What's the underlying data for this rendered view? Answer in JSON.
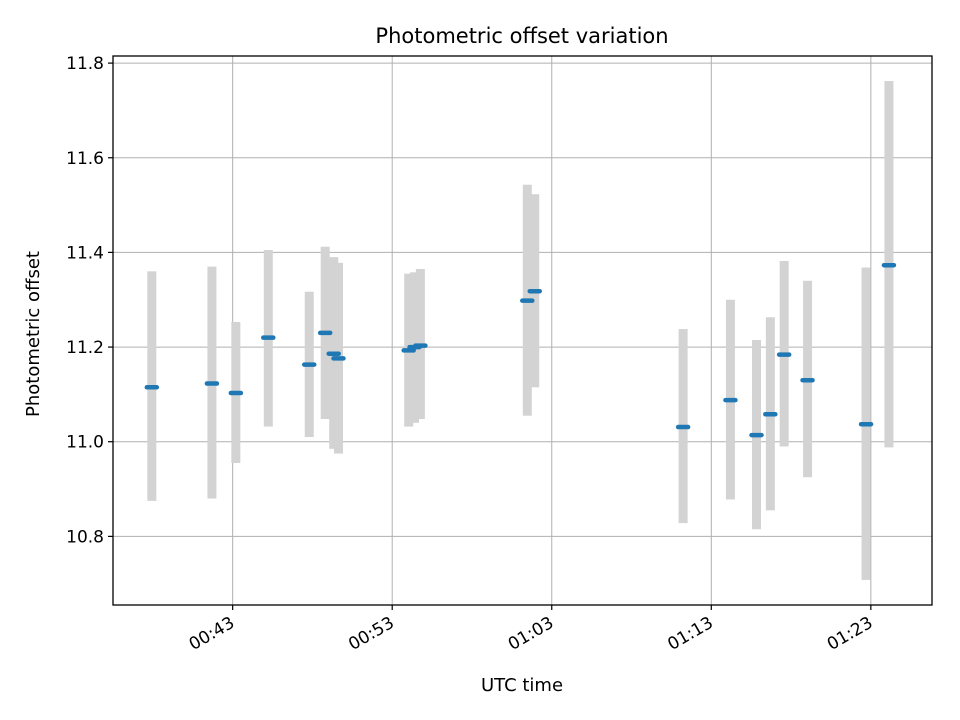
{
  "colors": {
    "background": "#ffffff",
    "axes": "#000000",
    "grid": "#b0b0b0",
    "errorbar": "#d3d3d3",
    "marker": "#1f77b4"
  },
  "chart_data": {
    "type": "scatter",
    "title": "Photometric offset variation",
    "xlabel": "UTC time",
    "ylabel": "Photometric offset",
    "grid": true,
    "xlim": [
      "00:35:30",
      "01:26:50"
    ],
    "ylim": [
      10.655,
      11.815
    ],
    "xticks": [
      "00:43",
      "00:53",
      "01:03",
      "01:13",
      "01:23"
    ],
    "yticks": [
      "10.8",
      "11.0",
      "11.2",
      "11.4",
      "11.6",
      "11.8"
    ],
    "series": [
      {
        "points": [
          {
            "t": "00:37:56",
            "y": 11.115,
            "lo": 10.875,
            "hi": 11.36
          },
          {
            "t": "00:41:42",
            "y": 11.123,
            "lo": 10.88,
            "hi": 11.37
          },
          {
            "t": "00:43:12",
            "y": 11.103,
            "lo": 10.955,
            "hi": 11.253
          },
          {
            "t": "00:45:14",
            "y": 11.22,
            "lo": 11.032,
            "hi": 11.405
          },
          {
            "t": "00:47:48",
            "y": 11.163,
            "lo": 11.01,
            "hi": 11.317
          },
          {
            "t": "00:48:48",
            "y": 11.23,
            "lo": 11.048,
            "hi": 11.412
          },
          {
            "t": "00:49:20",
            "y": 11.186,
            "lo": 10.985,
            "hi": 11.39
          },
          {
            "t": "00:49:38",
            "y": 11.176,
            "lo": 10.975,
            "hi": 11.378
          },
          {
            "t": "00:54:02",
            "y": 11.193,
            "lo": 11.032,
            "hi": 11.355
          },
          {
            "t": "00:54:24",
            "y": 11.2,
            "lo": 11.04,
            "hi": 11.358
          },
          {
            "t": "00:54:46",
            "y": 11.203,
            "lo": 11.048,
            "hi": 11.365
          },
          {
            "t": "01:01:28",
            "y": 11.298,
            "lo": 11.055,
            "hi": 11.543
          },
          {
            "t": "01:01:56",
            "y": 11.318,
            "lo": 11.115,
            "hi": 11.523
          },
          {
            "t": "01:11:14",
            "y": 11.031,
            "lo": 10.828,
            "hi": 11.238
          },
          {
            "t": "01:14:12",
            "y": 11.088,
            "lo": 10.878,
            "hi": 11.3
          },
          {
            "t": "01:15:50",
            "y": 11.014,
            "lo": 10.815,
            "hi": 11.215
          },
          {
            "t": "01:16:42",
            "y": 11.058,
            "lo": 10.855,
            "hi": 11.263
          },
          {
            "t": "01:17:34",
            "y": 11.184,
            "lo": 10.99,
            "hi": 11.382
          },
          {
            "t": "01:19:02",
            "y": 11.13,
            "lo": 10.925,
            "hi": 11.34
          },
          {
            "t": "01:22:42",
            "y": 11.037,
            "lo": 10.708,
            "hi": 11.368
          },
          {
            "t": "01:24:08",
            "y": 11.373,
            "lo": 10.988,
            "hi": 11.762
          }
        ]
      }
    ]
  }
}
